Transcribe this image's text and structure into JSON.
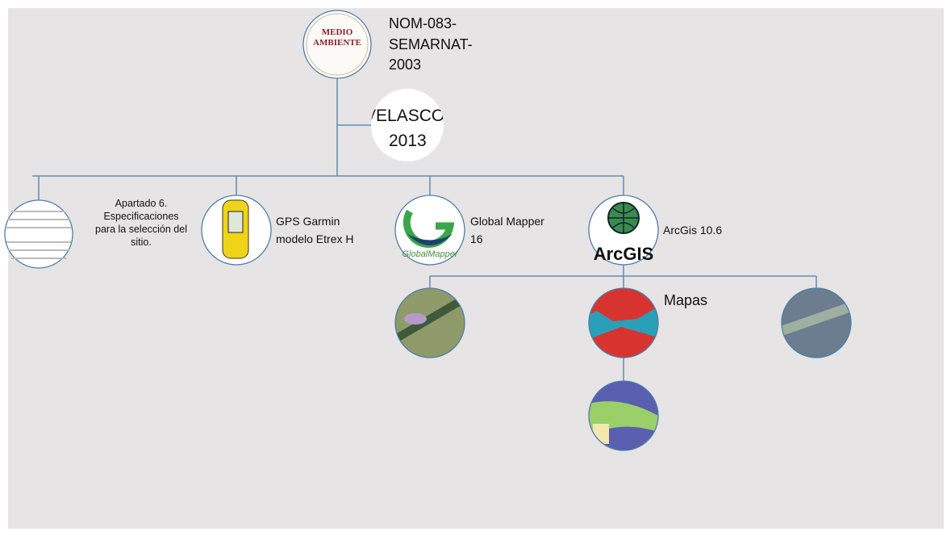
{
  "root": {
    "logo_text": [
      "MEDIO",
      "AMBIENTE"
    ],
    "label": [
      "NOM-083-",
      "SEMARNAT-",
      "2003"
    ]
  },
  "note": {
    "label": [
      "VELASCO",
      "2013"
    ]
  },
  "children": [
    {
      "label": [
        "Apartado 6.",
        "Especificaciones",
        "para la selección del",
        "sitio."
      ]
    },
    {
      "label": [
        "GPS Garmin",
        "modelo Etrex H"
      ]
    },
    {
      "label": [
        "Global Mapper",
        "16"
      ],
      "logo_text": "GlobalMapper"
    },
    {
      "label": [
        "ArcGis 10.6"
      ],
      "logo_text": "ArcGIS"
    }
  ],
  "maps": {
    "label": "Mapas"
  }
}
